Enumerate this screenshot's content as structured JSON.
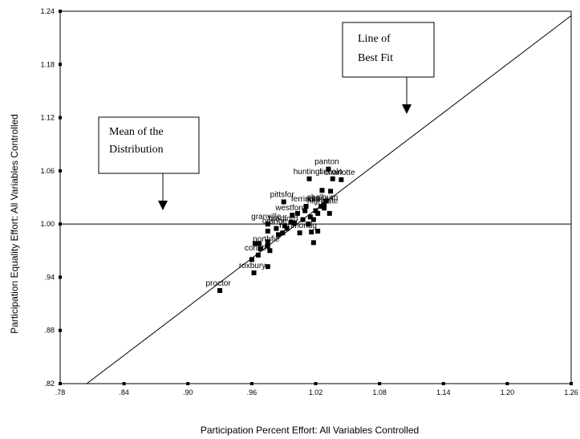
{
  "chart_data": {
    "type": "scatter",
    "xlabel": "Participation Percent Effort: All Variables Controlled",
    "ylabel": "Participation Equality Effort: All Variables Controlled",
    "xlim": [
      0.78,
      1.26
    ],
    "ylim": [
      0.82,
      1.24
    ],
    "x_ticks": [
      ".78",
      ".84",
      ".90",
      ".96",
      "1.02",
      "1.08",
      "1.14",
      "1.20",
      "1.26"
    ],
    "y_ticks": [
      "1.24",
      "1.18",
      "1.12",
      "1.06",
      "1.00",
      ".94",
      ".88",
      ".82"
    ],
    "reference_lines": [
      {
        "kind": "horizontal",
        "y": 1.0,
        "label": "Mean of the Distribution"
      },
      {
        "kind": "line",
        "points": [
          [
            0.805,
            0.82
          ],
          [
            1.26,
            1.235
          ]
        ],
        "label": "Line of Best Fit"
      }
    ],
    "callouts": [
      {
        "lines": [
          "Mean of the",
          "Distribution"
        ]
      },
      {
        "lines": [
          "Line of",
          "Best Fit"
        ]
      }
    ],
    "points": [
      {
        "x": 0.93,
        "y": 0.925,
        "label": "proctor"
      },
      {
        "x": 0.962,
        "y": 0.945,
        "label": "roxbury"
      },
      {
        "x": 0.96,
        "y": 0.96,
        "label": ""
      },
      {
        "x": 0.966,
        "y": 0.965,
        "label": "corinth"
      },
      {
        "x": 0.975,
        "y": 0.952,
        "label": ""
      },
      {
        "x": 0.963,
        "y": 0.978,
        "label": ""
      },
      {
        "x": 0.968,
        "y": 0.972,
        "label": ""
      },
      {
        "x": 0.975,
        "y": 0.975,
        "label": "northfie"
      },
      {
        "x": 0.977,
        "y": 0.97,
        "label": ""
      },
      {
        "x": 0.975,
        "y": 0.98,
        "label": ""
      },
      {
        "x": 0.967,
        "y": 0.978,
        "label": ""
      },
      {
        "x": 0.975,
        "y": 0.992,
        "label": ""
      },
      {
        "x": 0.975,
        "y": 1.0,
        "label": "granville"
      },
      {
        "x": 0.983,
        "y": 0.995,
        "label": "orange"
      },
      {
        "x": 0.985,
        "y": 0.988,
        "label": ""
      },
      {
        "x": 0.989,
        "y": 0.99,
        "label": ""
      },
      {
        "x": 0.991,
        "y": 0.998,
        "label": "bradford"
      },
      {
        "x": 0.993,
        "y": 0.995,
        "label": ""
      },
      {
        "x": 0.997,
        "y": 1.002,
        "label": ""
      },
      {
        "x": 0.998,
        "y": 1.01,
        "label": "westford"
      },
      {
        "x": 1.0,
        "y": 1.001,
        "label": ""
      },
      {
        "x": 1.003,
        "y": 1.012,
        "label": ""
      },
      {
        "x": 1.005,
        "y": 0.99,
        "label": "richmondg"
      },
      {
        "x": 1.008,
        "y": 1.005,
        "label": ""
      },
      {
        "x": 1.01,
        "y": 1.015,
        "label": ""
      },
      {
        "x": 1.011,
        "y": 1.02,
        "label": "ferrisbu"
      },
      {
        "x": 1.013,
        "y": 1.0,
        "label": ""
      },
      {
        "x": 1.015,
        "y": 1.008,
        "label": ""
      },
      {
        "x": 1.016,
        "y": 0.991,
        "label": ""
      },
      {
        "x": 1.018,
        "y": 0.979,
        "label": ""
      },
      {
        "x": 1.018,
        "y": 1.005,
        "label": ""
      },
      {
        "x": 1.02,
        "y": 1.015,
        "label": ""
      },
      {
        "x": 1.022,
        "y": 0.992,
        "label": ""
      },
      {
        "x": 1.022,
        "y": 1.012,
        "label": ""
      },
      {
        "x": 1.025,
        "y": 1.02,
        "label": "addison"
      },
      {
        "x": 1.028,
        "y": 1.022,
        "label": "shelburn"
      },
      {
        "x": 1.028,
        "y": 1.018,
        "label": "highgate"
      },
      {
        "x": 1.03,
        "y": 1.026,
        "label": ""
      },
      {
        "x": 1.033,
        "y": 1.012,
        "label": ""
      },
      {
        "x": 0.99,
        "y": 1.025,
        "label": "pittsfor"
      },
      {
        "x": 1.014,
        "y": 1.051,
        "label": "huntingt"
      },
      {
        "x": 1.026,
        "y": 1.038,
        "label": ""
      },
      {
        "x": 1.034,
        "y": 1.037,
        "label": ""
      },
      {
        "x": 1.032,
        "y": 1.062,
        "label": "panton"
      },
      {
        "x": 1.036,
        "y": 1.051,
        "label": "lincoln"
      },
      {
        "x": 1.044,
        "y": 1.05,
        "label": "charlotte"
      }
    ]
  }
}
